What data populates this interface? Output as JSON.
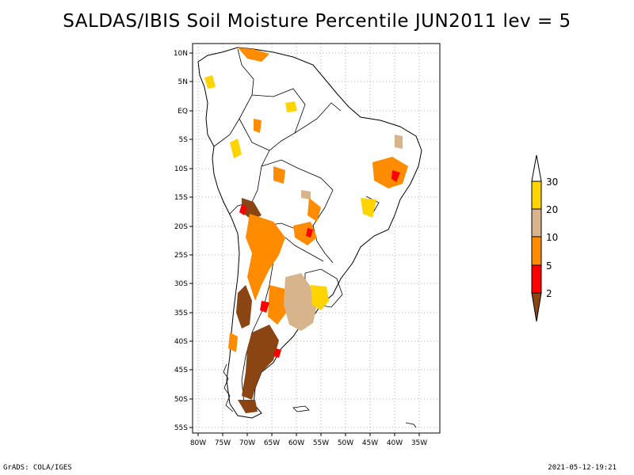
{
  "title": "SALDAS/IBIS Soil Moisture Percentile JUN2011 lev = 5",
  "footer": {
    "left": "GrADS: COLA/IGES",
    "right": "2021-05-12-19:21"
  },
  "map": {
    "region": "South America",
    "lat_labels": [
      "10N",
      "5N",
      "EQ",
      "5S",
      "10S",
      "15S",
      "20S",
      "25S",
      "30S",
      "35S",
      "40S",
      "45S",
      "50S",
      "55S"
    ],
    "lon_labels": [
      "80W",
      "75W",
      "70W",
      "65W",
      "60W",
      "55W",
      "50W",
      "45W",
      "40W",
      "35W"
    ],
    "grid": "dotted"
  },
  "colorbar": {
    "labels": [
      "30",
      "20",
      "10",
      "5",
      "2"
    ],
    "colors": {
      "above_30": "#ffffff",
      "20_30": "#ffd400",
      "10_20": "#d8b48c",
      "5_10": "#ff8c00",
      "2_5": "#ff0000",
      "below_2": "#8b4513"
    }
  }
}
